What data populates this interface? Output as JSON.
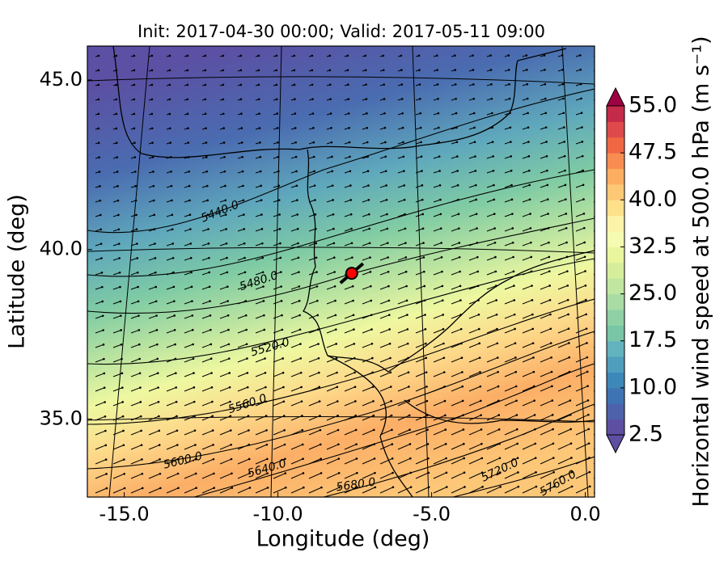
{
  "chart_data": {
    "type": "map",
    "title": "Init: 2017-04-30 00:00; Valid: 2017-05-11 09:00",
    "x_label": "Longitude (deg)",
    "y_label": "Latitude (deg)",
    "xlim": [
      -16.2,
      0.3
    ],
    "ylim": [
      32.7,
      46.0
    ],
    "xticks": [
      {
        "value": -15,
        "label": "-15.0"
      },
      {
        "value": -10,
        "label": "-10.0"
      },
      {
        "value": -5,
        "label": "-5.0"
      },
      {
        "value": 0,
        "label": "0.0"
      }
    ],
    "yticks": [
      {
        "value": 45,
        "label": "45.0"
      },
      {
        "value": 40,
        "label": "40.0"
      },
      {
        "value": 35,
        "label": "35.0"
      }
    ],
    "contour_labels": [
      "5440.0",
      "5480.0",
      "5520.0",
      "5560.0",
      "5600.0",
      "5640.0",
      "5680.0",
      "5720.0",
      "5760.0"
    ],
    "marker": {
      "lon": -7.6,
      "lat": 39.3,
      "color": "#ff0000"
    },
    "colorbar": {
      "label": "Horizontal wind speed at 500.0 hPa (m s⁻¹)",
      "lim": [
        2.5,
        55
      ],
      "ticks": [
        {
          "value": 2.5,
          "label": "2.5"
        },
        {
          "value": 10,
          "label": "10.0"
        },
        {
          "value": 17.5,
          "label": "17.5"
        },
        {
          "value": 25,
          "label": "25.0"
        },
        {
          "value": 32.5,
          "label": "32.5"
        },
        {
          "value": 40,
          "label": "40.0"
        },
        {
          "value": 47.5,
          "label": "47.5"
        },
        {
          "value": 55,
          "label": "55.0"
        }
      ],
      "colors": [
        "#5e4fa2",
        "#4e61ab",
        "#3f74b4",
        "#3d88b9",
        "#4f9ebe",
        "#62b3bd",
        "#78c6a5",
        "#8fd1a4",
        "#a8dca4",
        "#c0e6a0",
        "#d6ee9b",
        "#e9f69d",
        "#f5fbb0",
        "#fdf3a8",
        "#fee08b",
        "#fdc876",
        "#fdae61",
        "#f88d51",
        "#f06744",
        "#de4a4c",
        "#c42a4a"
      ]
    }
  }
}
